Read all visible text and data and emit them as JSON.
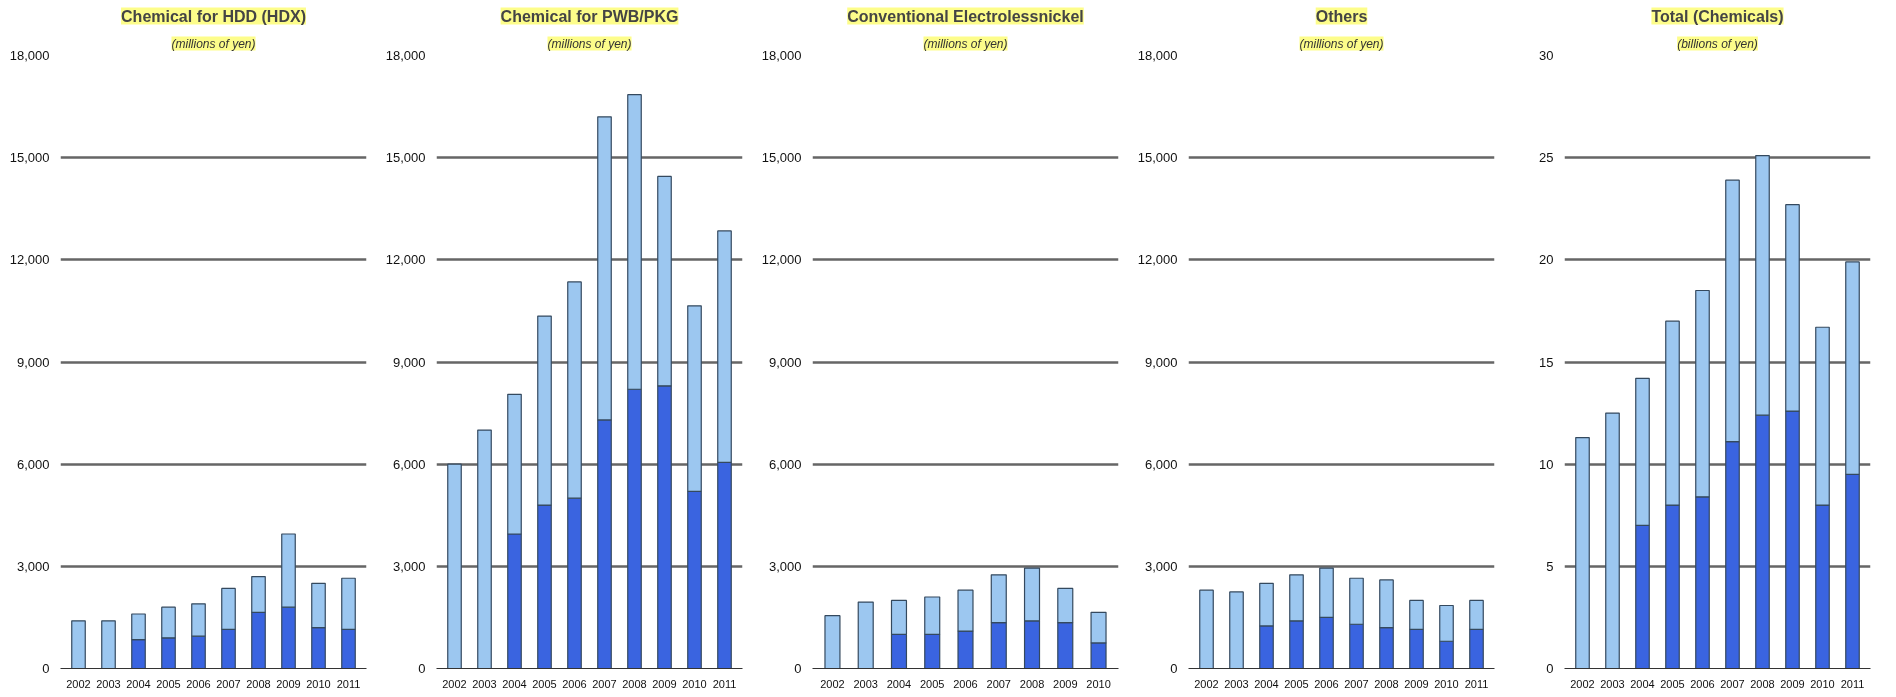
{
  "chart_data": [
    {
      "type": "bar",
      "title": "Chemical for HDD (HDX)",
      "subtitle": "(millions of yen)",
      "stacked": true,
      "grid": "y",
      "categories": [
        "2002",
        "2003",
        "2004",
        "2005",
        "2006",
        "2007",
        "2008",
        "2009",
        "2010",
        "2011"
      ],
      "ylim": [
        0,
        18000
      ],
      "yticks": [
        {
          "value": 0,
          "label": "0"
        },
        {
          "value": 3000,
          "label": "3,000"
        },
        {
          "value": 6000,
          "label": "6,000"
        },
        {
          "value": 9000,
          "label": "9,000"
        },
        {
          "value": 12000,
          "label": "12,000"
        },
        {
          "value": 15000,
          "label": "15,000"
        },
        {
          "value": 18000,
          "label": "18,000"
        }
      ],
      "series": [
        {
          "color": "#3a64e0",
          "values": [
            null,
            null,
            850,
            900,
            950,
            1150,
            1650,
            1800,
            1200,
            1150
          ]
        },
        {
          "color": "#9cc7f0",
          "values": [
            1400,
            1400,
            750,
            900,
            950,
            1200,
            1050,
            2150,
            1300,
            1500
          ]
        }
      ]
    },
    {
      "type": "bar",
      "title": "Chemical for PWB/PKG",
      "subtitle": "(millions of yen)",
      "stacked": true,
      "grid": "y",
      "categories": [
        "2002",
        "2003",
        "2004",
        "2005",
        "2006",
        "2007",
        "2008",
        "2009",
        "2010",
        "2011"
      ],
      "ylim": [
        0,
        18000
      ],
      "yticks": [
        {
          "value": 0,
          "label": "0"
        },
        {
          "value": 3000,
          "label": "3,000"
        },
        {
          "value": 6000,
          "label": "6,000"
        },
        {
          "value": 9000,
          "label": "9,000"
        },
        {
          "value": 12000,
          "label": "12,000"
        },
        {
          "value": 15000,
          "label": "15,000"
        },
        {
          "value": 18000,
          "label": "18,000"
        }
      ],
      "series": [
        {
          "color": "#3a64e0",
          "values": [
            null,
            null,
            3950,
            4800,
            5000,
            7300,
            8200,
            8300,
            5200,
            6050
          ]
        },
        {
          "color": "#9cc7f0",
          "values": [
            6000,
            7000,
            4100,
            5550,
            6350,
            8900,
            8650,
            6150,
            5450,
            6800
          ]
        }
      ]
    },
    {
      "type": "bar",
      "title": "Conventional Electrolessnickel",
      "subtitle": "(millions of yen)",
      "stacked": true,
      "grid": "y",
      "categories": [
        "2002",
        "2003",
        "2004",
        "2005",
        "2006",
        "2007",
        "2008",
        "2009",
        "2010"
      ],
      "ylim": [
        0,
        18000
      ],
      "yticks": [
        {
          "value": 0,
          "label": "0"
        },
        {
          "value": 3000,
          "label": "3,000"
        },
        {
          "value": 6000,
          "label": "6,000"
        },
        {
          "value": 9000,
          "label": "9,000"
        },
        {
          "value": 12000,
          "label": "12,000"
        },
        {
          "value": 15000,
          "label": "15,000"
        },
        {
          "value": 18000,
          "label": "18,000"
        }
      ],
      "series": [
        {
          "color": "#3a64e0",
          "values": [
            null,
            null,
            1000,
            1000,
            1100,
            1350,
            1400,
            1350,
            750
          ]
        },
        {
          "color": "#9cc7f0",
          "values": [
            1550,
            1950,
            1000,
            1100,
            1200,
            1400,
            1550,
            1000,
            900
          ]
        }
      ]
    },
    {
      "type": "bar",
      "title": "Others",
      "subtitle": "(millions of yen)",
      "stacked": true,
      "grid": "y",
      "categories": [
        "2002",
        "2003",
        "2004",
        "2005",
        "2006",
        "2007",
        "2008",
        "2009",
        "2010",
        "2011"
      ],
      "ylim": [
        0,
        18000
      ],
      "yticks": [
        {
          "value": 0,
          "label": "0"
        },
        {
          "value": 3000,
          "label": "3,000"
        },
        {
          "value": 6000,
          "label": "6,000"
        },
        {
          "value": 9000,
          "label": "9,000"
        },
        {
          "value": 12000,
          "label": "12,000"
        },
        {
          "value": 15000,
          "label": "15,000"
        },
        {
          "value": 18000,
          "label": "18,000"
        }
      ],
      "series": [
        {
          "color": "#3a64e0",
          "values": [
            null,
            null,
            1250,
            1400,
            1500,
            1300,
            1200,
            1150,
            800,
            1150
          ]
        },
        {
          "color": "#9cc7f0",
          "values": [
            2300,
            2250,
            1250,
            1350,
            1450,
            1350,
            1400,
            850,
            1050,
            850
          ]
        }
      ]
    },
    {
      "type": "bar",
      "title": "Total (Chemicals)",
      "subtitle": "(billions of yen)",
      "stacked": true,
      "grid": "y",
      "categories": [
        "2002",
        "2003",
        "2004",
        "2005",
        "2006",
        "2007",
        "2008",
        "2009",
        "2010",
        "2011"
      ],
      "ylim": [
        0,
        30
      ],
      "yticks": [
        0,
        5,
        10,
        15,
        20,
        25,
        30
      ],
      "series": [
        {
          "color": "#3a64e0",
          "values": [
            null,
            null,
            7.0,
            8.0,
            8.4,
            11.1,
            12.4,
            12.6,
            8.0,
            9.5
          ]
        },
        {
          "color": "#9cc7f0",
          "values": [
            11.3,
            12.5,
            7.2,
            9.0,
            10.1,
            12.8,
            12.7,
            10.1,
            8.7,
            10.4
          ]
        }
      ]
    }
  ]
}
